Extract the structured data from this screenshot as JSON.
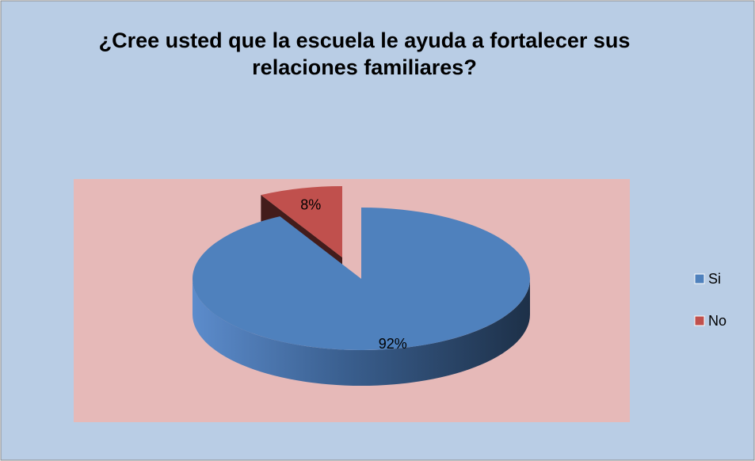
{
  "chart_data": {
    "type": "pie",
    "title": "¿Cree usted que la escuela le ayuda a fortalecer sus relaciones familiares?",
    "categories": [
      "Si",
      "No"
    ],
    "values": [
      92,
      8
    ],
    "value_labels": [
      "92%",
      "8%"
    ],
    "colors": [
      "#4f81bd",
      "#c0504d"
    ],
    "legend": "right"
  }
}
